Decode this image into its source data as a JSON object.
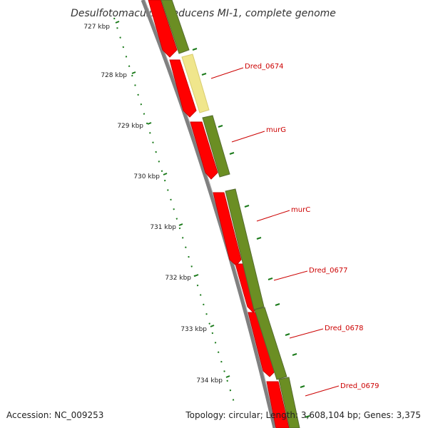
{
  "title": "Desulfotomaculum reducens MI-1, complete genome",
  "accession": "Accession: NC_009253",
  "summary": "Topology: circular; Length: 3,608,104 bp; Genes: 3,375",
  "ticks": [
    "727 kbp",
    "728 kbp",
    "729 kbp",
    "730 kbp",
    "731 kbp",
    "732 kbp",
    "733 kbp",
    "734 kbp"
  ],
  "genes": [
    "Dred_0674",
    "murG",
    "murC",
    "Dred_0677",
    "Dred_0678",
    "Dred_0679"
  ],
  "colors": {
    "cds_red": "#ff0000",
    "cds_green": "#6b8e23",
    "highlight": "#f0e68c",
    "tick_green": "#1a7a1a",
    "backbone": "#808080",
    "label_red": "#cc0000"
  }
}
